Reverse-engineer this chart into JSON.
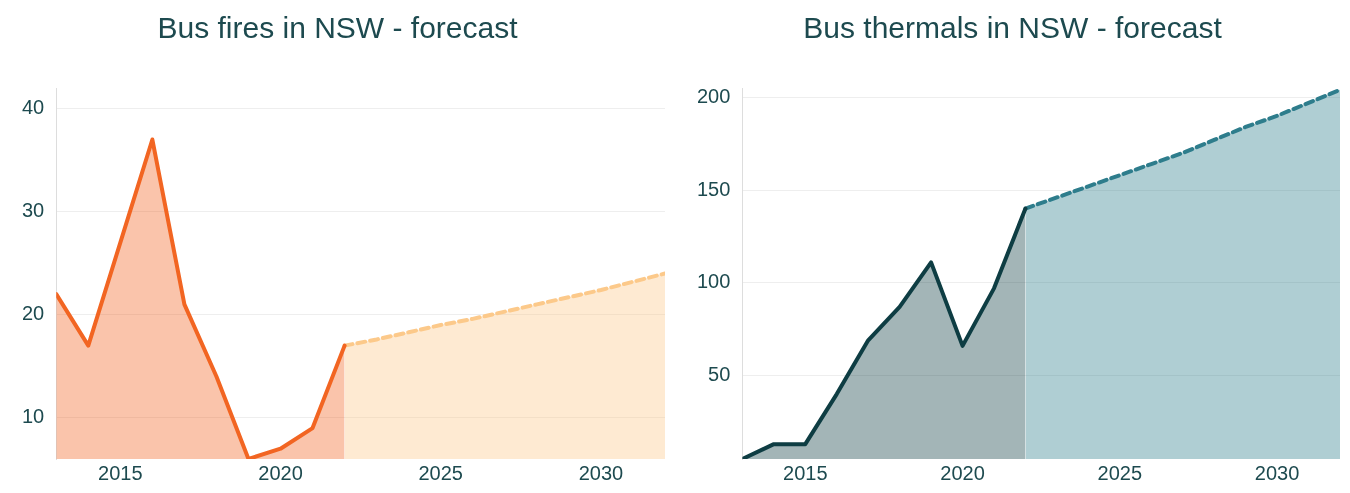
{
  "chart_data": [
    {
      "type": "area",
      "title": "Bus fires in NSW - forecast",
      "xlim": [
        2013,
        2032
      ],
      "xticks": [
        2015,
        2020,
        2025,
        2030
      ],
      "ylim": [
        6,
        42
      ],
      "yticks": [
        10,
        20,
        30,
        40
      ],
      "grid": "y",
      "legend": false,
      "marker": "none",
      "series": [
        {
          "color": "#f26522",
          "line_style": "solid",
          "x": [
            2013,
            2014,
            2015,
            2016,
            2017,
            2018,
            2019,
            2020,
            2021,
            2022
          ],
          "values": [
            22,
            17,
            27,
            37,
            21,
            14,
            6,
            7,
            9,
            17
          ]
        },
        {
          "color": "#fcc98a",
          "line_style": "dashed",
          "x": [
            2022,
            2023,
            2024,
            2025,
            2026,
            2027,
            2028,
            2029,
            2030,
            2031,
            2032
          ],
          "values": [
            17,
            17.6,
            18.3,
            19,
            19.6,
            20.3,
            21,
            21.7,
            22.4,
            23.2,
            24
          ]
        }
      ]
    },
    {
      "type": "area",
      "title": "Bus thermals in NSW - forecast",
      "xlim": [
        2013,
        2032
      ],
      "xticks": [
        2015,
        2020,
        2025,
        2030
      ],
      "ylim": [
        5,
        205
      ],
      "yticks": [
        50,
        100,
        150,
        200
      ],
      "grid": "y",
      "legend": false,
      "marker": "none",
      "series": [
        {
          "color": "#0e3d43",
          "line_style": "solid",
          "x": [
            2013,
            2014,
            2015,
            2016,
            2017,
            2018,
            2019,
            2020,
            2021,
            2022
          ],
          "values": [
            5,
            13,
            13,
            40,
            69,
            87,
            111,
            66,
            97,
            140
          ]
        },
        {
          "color": "#2e7d8c",
          "line_style": "dashed",
          "x": [
            2022,
            2023,
            2024,
            2025,
            2026,
            2027,
            2028,
            2029,
            2030,
            2031,
            2032
          ],
          "values": [
            140,
            146,
            152,
            158,
            164,
            170,
            177,
            184,
            190,
            197,
            204
          ]
        }
      ]
    }
  ]
}
